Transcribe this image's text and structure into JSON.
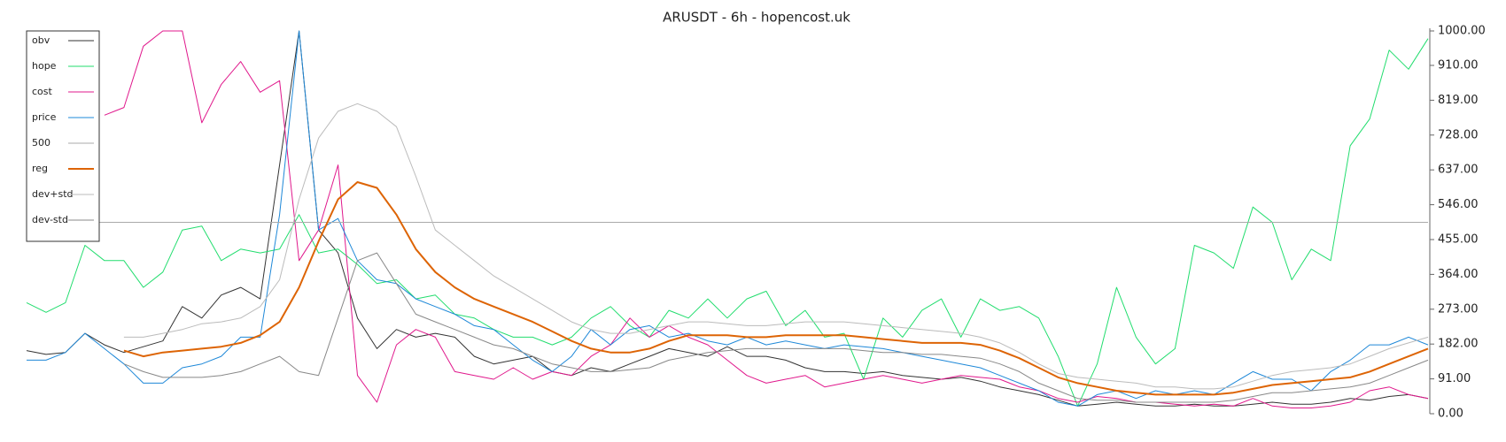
{
  "chart_data": {
    "type": "line",
    "title": "ARUSDT - 6h - hopencost.uk",
    "categories": [
      null,
      null,
      null,
      null,
      null,
      null,
      null,
      null,
      null,
      null,
      null,
      null,
      null,
      null,
      null,
      null,
      null,
      null,
      null,
      null,
      null,
      null,
      null,
      null,
      null,
      null,
      null,
      null,
      null,
      null,
      null,
      null,
      null,
      null,
      null,
      null,
      null,
      null,
      null,
      null,
      null,
      null,
      null,
      null,
      null,
      null,
      null,
      null,
      null,
      null,
      null,
      null,
      null,
      null,
      null,
      null,
      null,
      null,
      null,
      null,
      null,
      null,
      null,
      null,
      null,
      null,
      null,
      null,
      null,
      null,
      null,
      null,
      null
    ],
    "ylim": [
      0,
      1000
    ],
    "yticks": [
      {
        "value": 0,
        "label": "0.00"
      },
      {
        "value": 91,
        "label": "91.00"
      },
      {
        "value": 182,
        "label": "182.00"
      },
      {
        "value": 273,
        "label": "273.00"
      },
      {
        "value": 364,
        "label": "364.00"
      },
      {
        "value": 455,
        "label": "455.00"
      },
      {
        "value": 546,
        "label": "546.00"
      },
      {
        "value": 637,
        "label": "637.00"
      },
      {
        "value": 728,
        "label": "728.00"
      },
      {
        "value": 819,
        "label": "819.00"
      },
      {
        "value": 910,
        "label": "910.00"
      },
      {
        "value": 1000,
        "label": "1000.00"
      }
    ],
    "legend": "upper left",
    "series": [
      {
        "name": "obv",
        "color": "#333333",
        "width": 1,
        "values": [
          165,
          155,
          160,
          210,
          180,
          160,
          175,
          190,
          280,
          250,
          310,
          330,
          300,
          650,
          1000,
          480,
          420,
          250,
          170,
          220,
          200,
          210,
          200,
          150,
          130,
          140,
          150,
          110,
          100,
          120,
          110,
          130,
          150,
          170,
          160,
          150,
          175,
          150,
          150,
          140,
          120,
          110,
          110,
          105,
          110,
          100,
          95,
          90,
          95,
          85,
          70,
          60,
          50,
          35,
          20,
          25,
          30,
          25,
          20,
          20,
          25,
          20,
          20,
          25,
          30,
          25,
          25,
          30,
          40,
          35,
          45,
          50,
          40
        ]
      },
      {
        "name": "hope",
        "color": "#22dd6e",
        "width": 1,
        "values": [
          290,
          265,
          290,
          440,
          400,
          400,
          330,
          370,
          480,
          490,
          400,
          430,
          420,
          430,
          520,
          420,
          430,
          390,
          340,
          350,
          300,
          310,
          260,
          250,
          220,
          200,
          200,
          180,
          200,
          250,
          280,
          230,
          200,
          270,
          250,
          300,
          250,
          300,
          320,
          230,
          270,
          200,
          210,
          90,
          250,
          200,
          270,
          300,
          200,
          300,
          270,
          280,
          250,
          150,
          20,
          130,
          330,
          200,
          130,
          170,
          440,
          420,
          380,
          540,
          500,
          350,
          430,
          400,
          700,
          770,
          950,
          900,
          980
        ]
      },
      {
        "name": "cost",
        "color": "#e0188c",
        "width": 1,
        "values": [
          null,
          null,
          null,
          null,
          780,
          800,
          960,
          1000,
          1000,
          760,
          860,
          920,
          840,
          870,
          400,
          480,
          650,
          100,
          30,
          180,
          220,
          200,
          110,
          100,
          90,
          120,
          90,
          110,
          100,
          150,
          180,
          250,
          200,
          230,
          200,
          180,
          140,
          100,
          80,
          90,
          100,
          70,
          80,
          90,
          100,
          90,
          80,
          90,
          100,
          95,
          90,
          70,
          60,
          40,
          30,
          45,
          40,
          30,
          30,
          25,
          20,
          25,
          20,
          40,
          20,
          15,
          15,
          20,
          30,
          60,
          70,
          50,
          40
        ]
      },
      {
        "name": "price",
        "color": "#1e88d8",
        "width": 1,
        "values": [
          140,
          140,
          160,
          210,
          170,
          130,
          80,
          80,
          120,
          130,
          150,
          200,
          200,
          520,
          1000,
          480,
          510,
          400,
          350,
          340,
          300,
          280,
          260,
          230,
          220,
          180,
          140,
          110,
          150,
          220,
          180,
          220,
          230,
          200,
          210,
          190,
          180,
          200,
          180,
          190,
          180,
          170,
          180,
          175,
          170,
          160,
          150,
          140,
          130,
          120,
          100,
          80,
          60,
          30,
          20,
          50,
          60,
          40,
          60,
          50,
          60,
          50,
          80,
          110,
          90,
          90,
          60,
          110,
          140,
          180,
          180,
          200,
          180
        ]
      },
      {
        "name": "500",
        "color": "#aaaaaa",
        "width": 1,
        "values": [
          500,
          500,
          500,
          500,
          500,
          500,
          500,
          500,
          500,
          500,
          500,
          500,
          500,
          500,
          500,
          500,
          500,
          500,
          500,
          500,
          500,
          500,
          500,
          500,
          500,
          500,
          500,
          500,
          500,
          500,
          500,
          500,
          500,
          500,
          500,
          500,
          500,
          500,
          500,
          500,
          500,
          500,
          500,
          500,
          500,
          500,
          500,
          500,
          500,
          500,
          500,
          500,
          500,
          500,
          500,
          500,
          500,
          500,
          500,
          500,
          500,
          500,
          500,
          500,
          500,
          500,
          500,
          500,
          500,
          500,
          500,
          500,
          500
        ]
      },
      {
        "name": "reg",
        "color": "#dd6405",
        "width": 2,
        "values": [
          null,
          null,
          null,
          null,
          null,
          165,
          150,
          160,
          165,
          170,
          175,
          185,
          205,
          240,
          330,
          450,
          560,
          605,
          590,
          520,
          430,
          370,
          330,
          300,
          280,
          260,
          240,
          215,
          190,
          170,
          160,
          160,
          170,
          190,
          205,
          205,
          205,
          200,
          200,
          205,
          205,
          205,
          205,
          200,
          195,
          190,
          185,
          185,
          185,
          180,
          165,
          145,
          120,
          95,
          80,
          70,
          60,
          55,
          50,
          50,
          50,
          50,
          55,
          65,
          75,
          80,
          85,
          90,
          95,
          110,
          130,
          150,
          170
        ]
      },
      {
        "name": "dev+std",
        "color": "#bbbbbb",
        "width": 1,
        "values": [
          null,
          null,
          null,
          null,
          null,
          200,
          200,
          210,
          220,
          235,
          240,
          250,
          280,
          350,
          560,
          720,
          790,
          810,
          790,
          750,
          620,
          480,
          440,
          400,
          360,
          330,
          300,
          270,
          240,
          220,
          210,
          210,
          220,
          230,
          240,
          240,
          235,
          230,
          230,
          235,
          240,
          240,
          240,
          235,
          230,
          225,
          220,
          215,
          210,
          200,
          185,
          160,
          130,
          105,
          95,
          90,
          85,
          80,
          70,
          70,
          65,
          65,
          70,
          85,
          100,
          110,
          115,
          120,
          130,
          150,
          170,
          185,
          200
        ]
      },
      {
        "name": "dev-std",
        "color": "#888888",
        "width": 1,
        "values": [
          null,
          null,
          null,
          null,
          null,
          130,
          110,
          95,
          95,
          95,
          100,
          110,
          130,
          150,
          110,
          100,
          250,
          400,
          420,
          340,
          260,
          240,
          220,
          200,
          180,
          170,
          150,
          130,
          120,
          110,
          110,
          115,
          120,
          140,
          150,
          160,
          165,
          170,
          170,
          170,
          170,
          170,
          170,
          165,
          160,
          160,
          155,
          155,
          150,
          145,
          130,
          110,
          80,
          60,
          40,
          35,
          35,
          30,
          30,
          30,
          30,
          30,
          35,
          45,
          55,
          55,
          60,
          65,
          70,
          80,
          100,
          120,
          140
        ]
      }
    ]
  }
}
